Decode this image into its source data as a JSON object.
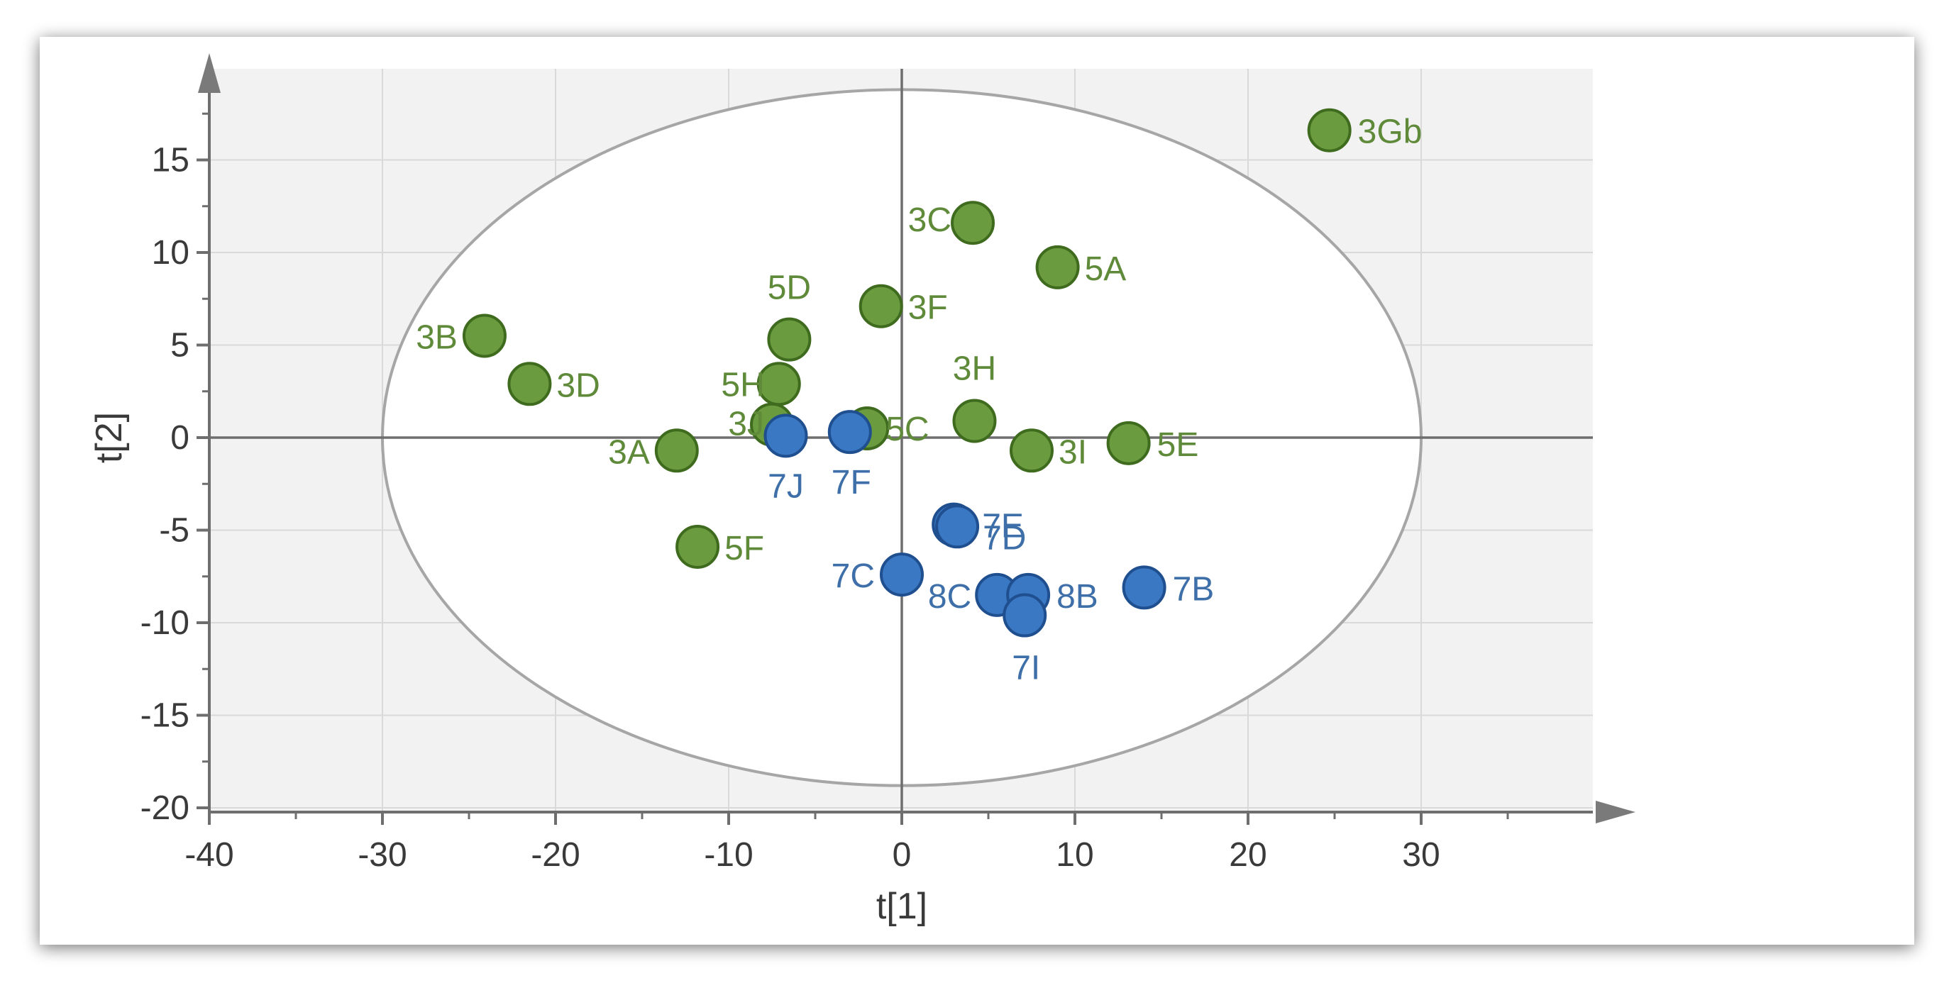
{
  "chart_data": {
    "type": "scatter",
    "title": "",
    "xlabel": "t[1]",
    "ylabel": "t[2]",
    "xlim": [
      -40,
      40
    ],
    "ylim": [
      -20,
      20
    ],
    "xticks": [
      -40,
      -30,
      -20,
      -10,
      0,
      10,
      20,
      30
    ],
    "yticks": [
      15,
      10,
      5,
      0,
      -5,
      -10,
      -15,
      -20
    ],
    "x_tick_labels": [
      "-40",
      "-30",
      "-20",
      "-10",
      "0",
      "10",
      "20",
      "30"
    ],
    "y_tick_labels": [
      "15",
      "10",
      "5",
      "0",
      "-5",
      "-10",
      "-15",
      "-20"
    ],
    "grid": true,
    "ellipse": {
      "cx": 0,
      "cy": 0,
      "rx": 30,
      "ry": 18.8
    },
    "colors": {
      "green": "#6a9b3e",
      "green_edge": "#3f6b1f",
      "green_text": "#5f8a3a",
      "blue": "#3a78c3",
      "blue_edge": "#1f4f8f",
      "blue_text": "#3e6fa8",
      "plot_bg": "#f2f2f2",
      "grid": "#d9d9d9",
      "axis": "#6e6e6e"
    },
    "series": [
      {
        "group": "green",
        "points": [
          {
            "label": "3Gb",
            "x": 24.7,
            "y": 16.6
          },
          {
            "label": "3C",
            "x": 4.1,
            "y": 11.6
          },
          {
            "label": "5A",
            "x": 9.0,
            "y": 9.2
          },
          {
            "label": "3F",
            "x": -1.2,
            "y": 7.1
          },
          {
            "label": "5D",
            "x": -6.5,
            "y": 5.3
          },
          {
            "label": "5H",
            "x": -7.1,
            "y": 2.9
          },
          {
            "label": "3B",
            "x": -24.1,
            "y": 5.5
          },
          {
            "label": "3D",
            "x": -21.5,
            "y": 2.9
          },
          {
            "label": "3H",
            "x": 4.2,
            "y": 0.9
          },
          {
            "label": "3J",
            "x": -7.5,
            "y": 0.7
          },
          {
            "label": "5C",
            "x": -2.0,
            "y": 0.5
          },
          {
            "label": "3I",
            "x": 7.5,
            "y": -0.7
          },
          {
            "label": "5E",
            "x": 13.1,
            "y": -0.3
          },
          {
            "label": "3A",
            "x": -13.0,
            "y": -0.7
          },
          {
            "label": "5F",
            "x": -11.8,
            "y": -5.9
          }
        ]
      },
      {
        "group": "blue",
        "points": [
          {
            "label": "7J",
            "x": -6.7,
            "y": 0.1
          },
          {
            "label": "7F",
            "x": -3.0,
            "y": 0.3
          },
          {
            "label": "7E",
            "x": 3.0,
            "y": -4.7
          },
          {
            "label": "7D",
            "x": 3.2,
            "y": -4.8
          },
          {
            "label": "7C",
            "x": 0.0,
            "y": -7.4
          },
          {
            "label": "8C",
            "x": 5.5,
            "y": -8.5
          },
          {
            "label": "8B",
            "x": 7.3,
            "y": -8.5
          },
          {
            "label": "7I",
            "x": 7.1,
            "y": -9.6
          },
          {
            "label": "7B",
            "x": 14.0,
            "y": -8.1
          }
        ]
      }
    ]
  }
}
